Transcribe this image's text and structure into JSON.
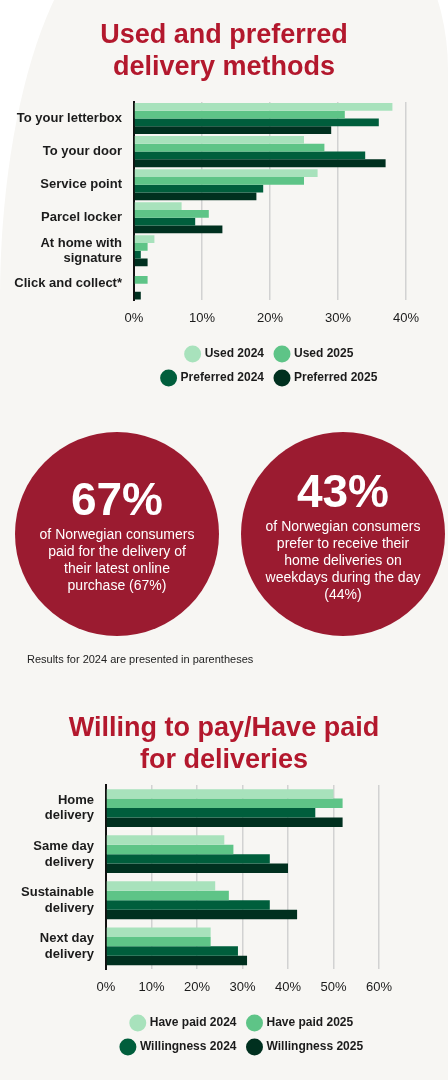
{
  "chart_data": [
    {
      "type": "bar",
      "orientation": "horizontal",
      "title": "Used and preferred delivery methods",
      "categories": [
        "To your letterbox",
        "To your door",
        "Service point",
        "Parcel locker",
        "At home with signature",
        "Click and collect*"
      ],
      "series": [
        {
          "name": "Used 2024",
          "color": "#a8e2bc",
          "values": [
            38,
            25,
            27,
            7,
            3,
            null
          ]
        },
        {
          "name": "Used 2025",
          "color": "#5ec487",
          "values": [
            31,
            28,
            25,
            11,
            2,
            2
          ]
        },
        {
          "name": "Preferred 2024",
          "color": "#005e3c",
          "values": [
            36,
            34,
            19,
            9,
            1,
            null
          ]
        },
        {
          "name": "Preferred 2025",
          "color": "#00301f",
          "values": [
            29,
            37,
            18,
            13,
            2,
            1
          ]
        }
      ],
      "xlim": [
        0,
        40
      ],
      "xticks": [
        {
          "value": 0,
          "label": "0%"
        },
        {
          "value": 10,
          "label": "10%"
        },
        {
          "value": 20,
          "label": "20%"
        },
        {
          "value": 30,
          "label": "30%"
        },
        {
          "value": 40,
          "label": "40%"
        }
      ],
      "grid": "x",
      "legend": "bottom"
    },
    {
      "type": "other",
      "annotations": [
        "67%",
        "of Norwegian consumers paid for the delivery of their latest online purchase (67%)",
        "43%",
        "of Norwegian consumers prefer to receive their home deliveries on weekdays during the day (44%)",
        "Results for 2024 are presented in parentheses"
      ]
    },
    {
      "type": "bar",
      "orientation": "horizontal",
      "title": "Willing to pay/Have paid for deliveries",
      "categories": [
        "Home delivery",
        "Same day delivery",
        "Sustainable delivery",
        "Next day delivery"
      ],
      "series": [
        {
          "name": "Have paid 2024",
          "color": "#a8e2bc",
          "values": [
            50,
            26,
            24,
            23
          ]
        },
        {
          "name": "Have paid 2025",
          "color": "#5ec487",
          "values": [
            52,
            28,
            27,
            23
          ]
        },
        {
          "name": "Willingness 2024",
          "color": "#005e3c",
          "values": [
            46,
            36,
            36,
            29
          ]
        },
        {
          "name": "Willingness 2025",
          "color": "#00301f",
          "values": [
            52,
            40,
            42,
            31
          ]
        }
      ],
      "xlim": [
        0,
        60
      ],
      "xticks": [
        {
          "value": 0,
          "label": "0%"
        },
        {
          "value": 10,
          "label": "10%"
        },
        {
          "value": 20,
          "label": "20%"
        },
        {
          "value": 30,
          "label": "30%"
        },
        {
          "value": 40,
          "label": "40%"
        },
        {
          "value": 50,
          "label": "50%"
        },
        {
          "value": 60,
          "label": "60%"
        }
      ],
      "grid": "x",
      "legend": "bottom"
    }
  ]
}
